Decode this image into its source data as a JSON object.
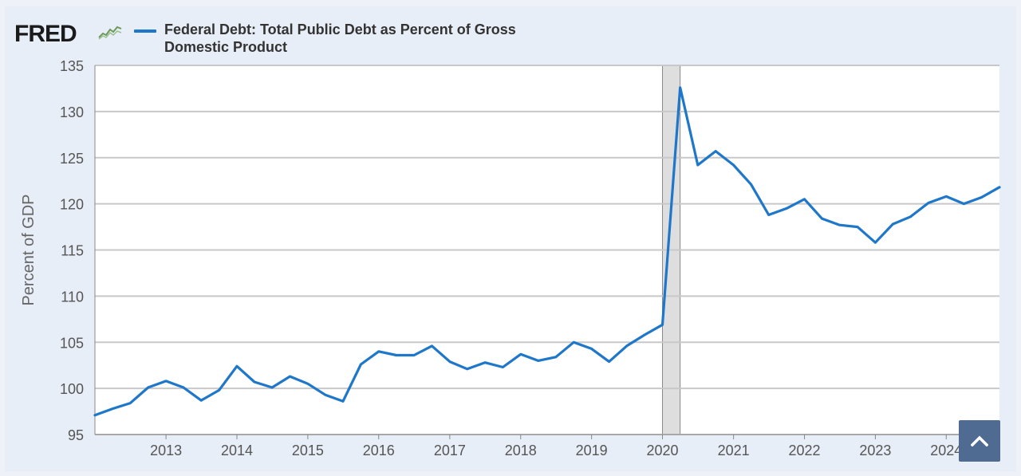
{
  "brand": {
    "logo_text": "FRED",
    "icon": "fred-sparkline-icon"
  },
  "chart_data": {
    "type": "line",
    "title": "",
    "xlabel": "",
    "ylabel": "Percent of GDP",
    "ylim": [
      95,
      135
    ],
    "y_ticks": [
      "95",
      "100",
      "105",
      "110",
      "115",
      "120",
      "125",
      "130",
      "135"
    ],
    "x_ticks": [
      "2013",
      "2014",
      "2015",
      "2016",
      "2017",
      "2018",
      "2019",
      "2020",
      "2021",
      "2022",
      "2023",
      "2024"
    ],
    "grid": true,
    "legend_position": "top-left",
    "recession_shading": {
      "start": "2020-01-01",
      "end": "2020-04-01",
      "color": "#dedede"
    },
    "series": [
      {
        "name": "Federal Debt: Total Public Debt as Percent of Gross Domestic Product",
        "color": "#1f77c9",
        "x": [
          "2012-01-01",
          "2012-04-01",
          "2012-07-01",
          "2012-10-01",
          "2013-01-01",
          "2013-04-01",
          "2013-07-01",
          "2013-10-01",
          "2014-01-01",
          "2014-04-01",
          "2014-07-01",
          "2014-10-01",
          "2015-01-01",
          "2015-04-01",
          "2015-07-01",
          "2015-10-01",
          "2016-01-01",
          "2016-04-01",
          "2016-07-01",
          "2016-10-01",
          "2017-01-01",
          "2017-04-01",
          "2017-07-01",
          "2017-10-01",
          "2018-01-01",
          "2018-04-01",
          "2018-07-01",
          "2018-10-01",
          "2019-01-01",
          "2019-04-01",
          "2019-07-01",
          "2019-10-01",
          "2020-01-01",
          "2020-04-01",
          "2020-07-01",
          "2020-10-01",
          "2021-01-01",
          "2021-04-01",
          "2021-07-01",
          "2021-10-01",
          "2022-01-01",
          "2022-04-01",
          "2022-07-01",
          "2022-10-01",
          "2023-01-01",
          "2023-04-01",
          "2023-07-01",
          "2023-10-01",
          "2024-01-01",
          "2024-04-01",
          "2024-07-01",
          "2024-10-01"
        ],
        "values": [
          97.1,
          97.8,
          98.4,
          100.1,
          100.8,
          100.1,
          98.7,
          99.8,
          102.4,
          100.7,
          100.1,
          101.3,
          100.5,
          99.3,
          98.6,
          102.6,
          104.0,
          103.6,
          103.6,
          104.6,
          102.9,
          102.1,
          102.8,
          102.3,
          103.7,
          103.0,
          103.4,
          105.0,
          104.3,
          102.9,
          104.6,
          105.8,
          106.9,
          132.6,
          124.2,
          125.7,
          124.2,
          122.1,
          118.8,
          119.5,
          120.5,
          118.4,
          117.7,
          117.5,
          115.8,
          117.8,
          118.6,
          120.1,
          120.8,
          120.0,
          120.7,
          121.8
        ]
      }
    ]
  }
}
